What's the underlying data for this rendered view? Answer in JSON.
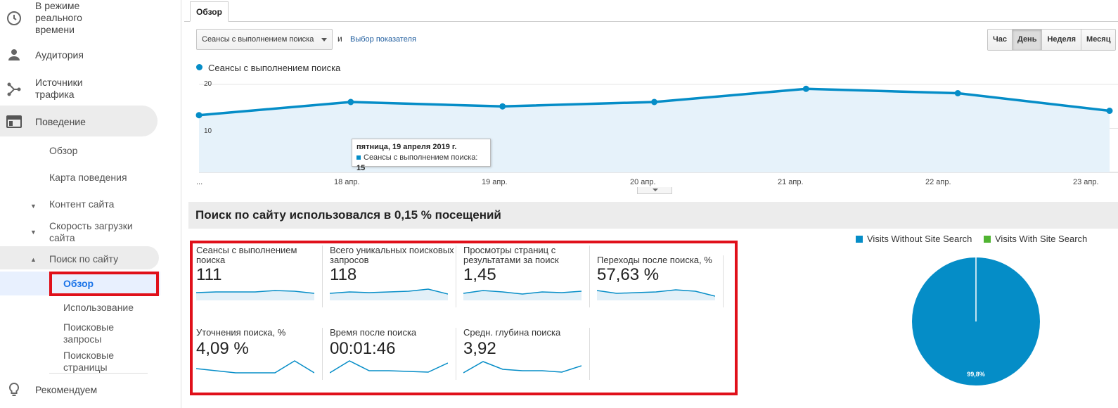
{
  "sidebar": {
    "realtime": "В режиме реального времени",
    "audience": "Аудитория",
    "sources": "Источники трафика",
    "behavior": "Поведение",
    "sub": {
      "overview": "Обзор",
      "behavior_map": "Карта поведения",
      "site_content": "Контент сайта",
      "site_speed": "Скорость загрузки сайта",
      "site_search": "Поиск по сайту",
      "search_overview": "Обзор",
      "usage": "Использование",
      "search_terms": "Поисковые запросы",
      "search_pages": "Поисковые страницы"
    },
    "recommend": "Рекомендуем"
  },
  "tab": "Обзор",
  "controls": {
    "metric_select": "Сеансы с выполнением поиска",
    "and": "и",
    "pick_metric": "Выбор показателя",
    "periods": [
      "Час",
      "День",
      "Неделя",
      "Месяц"
    ],
    "active_period": "День"
  },
  "chart_data": {
    "type": "area",
    "series": [
      {
        "name": "Сеансы с выполнением поиска",
        "values": [
          13,
          16,
          15,
          16,
          19,
          18,
          14
        ]
      }
    ],
    "x": [
      "...",
      "18 апр.",
      "19 апр.",
      "20 апр.",
      "21 апр.",
      "22 апр.",
      "23 апр."
    ],
    "yticks": [
      10,
      20
    ],
    "ylim": [
      0,
      20
    ],
    "color": "#058dc7"
  },
  "tooltip": {
    "date": "пятница, 19 апреля 2019 г.",
    "series": "Сеансы с выполнением поиска:",
    "value": "15"
  },
  "banner": "Поиск по сайту использовался в 0,15 % посещений",
  "metrics": [
    {
      "label": "Сеансы с выполнением поиска",
      "value": "111"
    },
    {
      "label": "Всего уникальных поисковых запросов",
      "value": "118"
    },
    {
      "label": "Просмотры страниц с результатами за поиск",
      "value": "1,45"
    },
    {
      "label": "Переходы после поиска, %",
      "value": "57,63 %"
    },
    {
      "label": "Уточнения поиска, %",
      "value": "4,09 %"
    },
    {
      "label": "Время после поиска",
      "value": "00:01:46"
    },
    {
      "label": "Средн. глубина поиска",
      "value": "3,92"
    }
  ],
  "pie": {
    "legend": [
      {
        "label": "Visits Without Site Search",
        "color": "#058dc7"
      },
      {
        "label": "Visits With Site Search",
        "color": "#50b432"
      }
    ],
    "percent_label": "99,8%",
    "values": [
      99.8,
      0.2
    ]
  }
}
